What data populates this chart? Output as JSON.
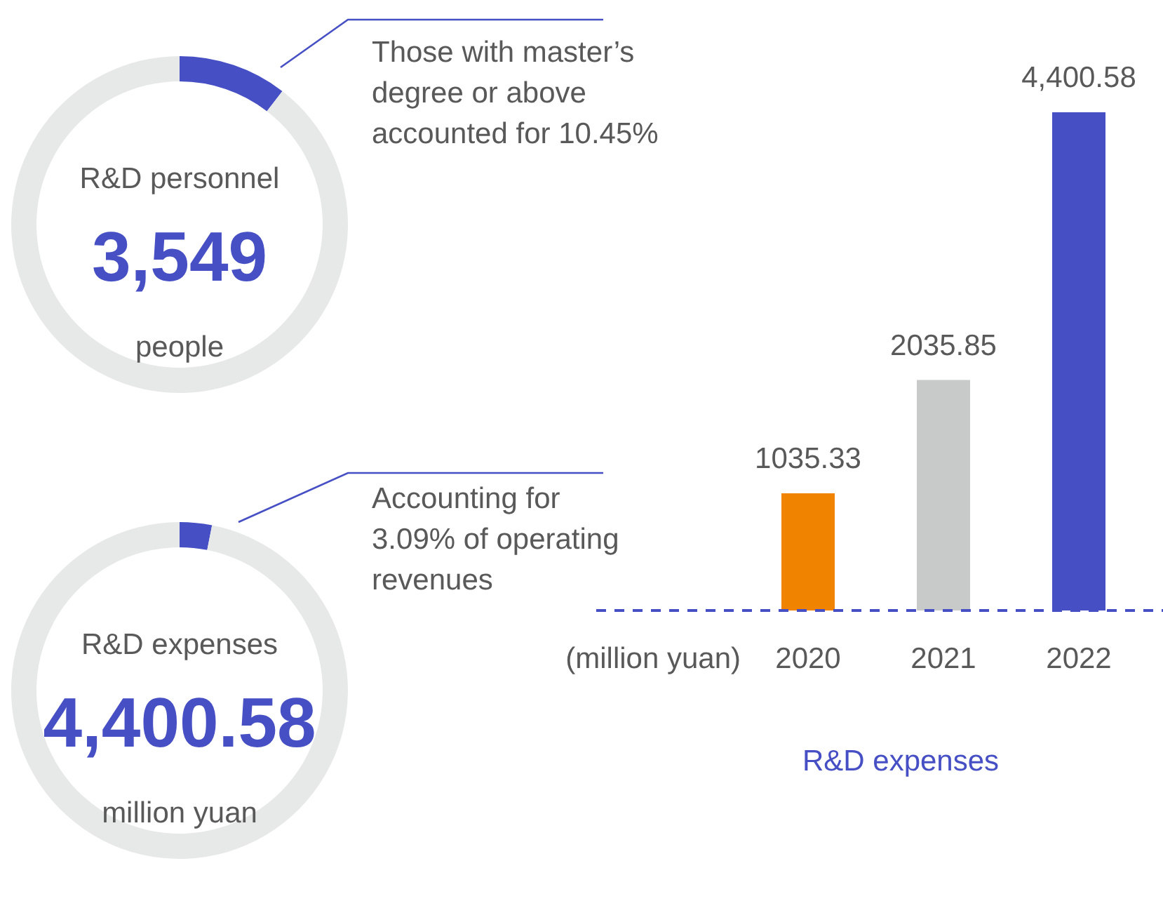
{
  "chart_data": [
    {
      "type": "donut",
      "categories": [
        null,
        null
      ],
      "values": [
        10.45,
        89.55
      ],
      "colors": [
        "#464fc4",
        "#e7e8e8"
      ],
      "annotations": [
        "R&D personnel",
        "3,549",
        "people",
        "Those with master’s\ndegree or above\naccounted for 10.45%"
      ]
    },
    {
      "type": "donut",
      "categories": [
        null,
        null
      ],
      "values": [
        3.09,
        96.91
      ],
      "colors": [
        "#464fc4",
        "#e7e8e8"
      ],
      "annotations": [
        "R&D expenses",
        "4,400.58",
        "million yuan",
        "Accounting for\n3.09% of operating\nrevenues"
      ]
    },
    {
      "type": "bar",
      "categories": [
        "2020",
        "2021",
        "2022"
      ],
      "values": [
        1035.33,
        2035.85,
        4400.58
      ],
      "colors": [
        "#f08300",
        "#c8c9c9",
        "#464fc4"
      ],
      "value_labels": [
        "1035.33",
        "2035.85",
        "4,400.58"
      ],
      "xlabel": "R&D expenses",
      "ref_lines": [
        {
          "axis": "y",
          "value": 0,
          "color": "#464fc4",
          "line_style": "dashed"
        }
      ],
      "annotations": [
        "(million yuan)"
      ]
    }
  ]
}
